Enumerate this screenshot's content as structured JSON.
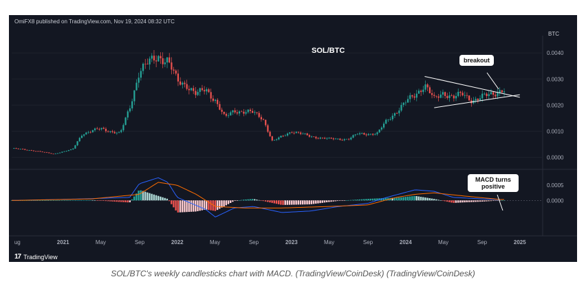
{
  "header": {
    "published_by": "OmiFX8 published on TradingView.com, Nov 19, 2024 08:32 UTC",
    "symbol": "SOL/BTC",
    "currency": "BTC",
    "brand": "TradingView",
    "brand_logo": "17"
  },
  "annotations": {
    "breakout": "breakout",
    "macd": "MACD turns positive"
  },
  "caption": "SOL/BTC's weekly candlesticks chart with MACD. (TradingView/CoinDesk) (TradingView/CoinDesk)",
  "colors": {
    "background": "#131722",
    "up": "#26a69a",
    "down": "#ef5350",
    "macd_line": "#2962ff",
    "signal_line": "#ff6d00"
  },
  "chart_data": {
    "type": "candlestick",
    "timeframe": "weekly",
    "x_ticks": [
      "ug",
      "2021",
      "May",
      "Sep",
      "2022",
      "May",
      "Sep",
      "2023",
      "May",
      "Sep",
      "2024",
      "May",
      "Sep",
      "2025"
    ],
    "price": {
      "ylim": [
        -0.0002,
        0.0044
      ],
      "yticks": [
        "0.0000",
        "0.0010",
        "0.0020",
        "0.0030",
        "0.0040"
      ],
      "anchors": [
        [
          "2020-08",
          0.00033
        ],
        [
          "2020-10",
          0.00025
        ],
        [
          "2020-12",
          0.00013
        ],
        [
          "2021-02",
          0.0003
        ],
        [
          "2021-03",
          0.0009
        ],
        [
          "2021-05",
          0.0011
        ],
        [
          "2021-07",
          0.0009
        ],
        [
          "2021-08",
          0.0019
        ],
        [
          "2021-09",
          0.0033
        ],
        [
          "2021-10",
          0.0036
        ],
        [
          "2021-11",
          0.0039
        ],
        [
          "2021-12",
          0.0037
        ],
        [
          "2022-01",
          0.0029
        ],
        [
          "2022-02",
          0.0028
        ],
        [
          "2022-03",
          0.0024
        ],
        [
          "2022-04",
          0.0026
        ],
        [
          "2022-05",
          0.0022
        ],
        [
          "2022-06",
          0.0015
        ],
        [
          "2022-07",
          0.0018
        ],
        [
          "2022-09",
          0.0017
        ],
        [
          "2022-10",
          0.0015
        ],
        [
          "2022-11",
          0.0006
        ],
        [
          "2022-12",
          0.0008
        ],
        [
          "2023-01",
          0.001
        ],
        [
          "2023-03",
          0.0008
        ],
        [
          "2023-05",
          0.0007
        ],
        [
          "2023-07",
          0.0007
        ],
        [
          "2023-08",
          0.0009
        ],
        [
          "2023-10",
          0.0009
        ],
        [
          "2023-11",
          0.0014
        ],
        [
          "2024-01",
          0.0021
        ],
        [
          "2024-02",
          0.0024
        ],
        [
          "2024-03",
          0.0028
        ],
        [
          "2024-04",
          0.0022
        ],
        [
          "2024-05",
          0.0025
        ],
        [
          "2024-06",
          0.0023
        ],
        [
          "2024-07",
          0.0024
        ],
        [
          "2024-08",
          0.0022
        ],
        [
          "2024-09",
          0.0023
        ],
        [
          "2024-10",
          0.0024
        ],
        [
          "2024-11",
          0.0026
        ]
      ],
      "triangle_upper": [
        [
          "2024-03",
          0.0031
        ],
        [
          "2025-01",
          0.0023
        ]
      ],
      "triangle_lower": [
        [
          "2024-04",
          0.0019
        ],
        [
          "2025-01",
          0.0024
        ]
      ]
    },
    "macd": {
      "ylim": [
        -0.0009,
        0.0008
      ],
      "yticks": [
        "0.0000",
        "0.0005"
      ],
      "macd_anchors": [
        [
          "2020-08",
          0.0
        ],
        [
          "2021-03",
          5e-05
        ],
        [
          "2021-08",
          0.0001
        ],
        [
          "2021-09",
          0.00055
        ],
        [
          "2021-11",
          0.00075
        ],
        [
          "2021-12",
          0.0006
        ],
        [
          "2022-01",
          0.0001
        ],
        [
          "2022-04",
          -0.0003
        ],
        [
          "2022-05",
          -0.00055
        ],
        [
          "2022-07",
          -0.00025
        ],
        [
          "2022-09",
          -0.0002
        ],
        [
          "2022-12",
          -0.0004
        ],
        [
          "2023-03",
          -0.00035
        ],
        [
          "2023-06",
          -0.0002
        ],
        [
          "2023-09",
          -0.0001
        ],
        [
          "2023-11",
          0.0001
        ],
        [
          "2024-02",
          0.00035
        ],
        [
          "2024-04",
          0.0003
        ],
        [
          "2024-06",
          0.0001
        ],
        [
          "2024-09",
          5e-05
        ],
        [
          "2024-11",
          3e-05
        ]
      ],
      "signal_anchors": [
        [
          "2020-08",
          0.0
        ],
        [
          "2021-04",
          5e-05
        ],
        [
          "2021-09",
          0.0002
        ],
        [
          "2021-11",
          0.0006
        ],
        [
          "2022-01",
          0.0005
        ],
        [
          "2022-03",
          0.0002
        ],
        [
          "2022-05",
          -0.0002
        ],
        [
          "2022-08",
          -0.00025
        ],
        [
          "2022-12",
          -0.00025
        ],
        [
          "2023-05",
          -0.0002
        ],
        [
          "2023-09",
          -0.00015
        ],
        [
          "2023-12",
          0.0001
        ],
        [
          "2024-02",
          0.0002
        ],
        [
          "2024-04",
          0.00025
        ],
        [
          "2024-07",
          0.00015
        ],
        [
          "2024-11",
          3e-05
        ]
      ]
    }
  }
}
